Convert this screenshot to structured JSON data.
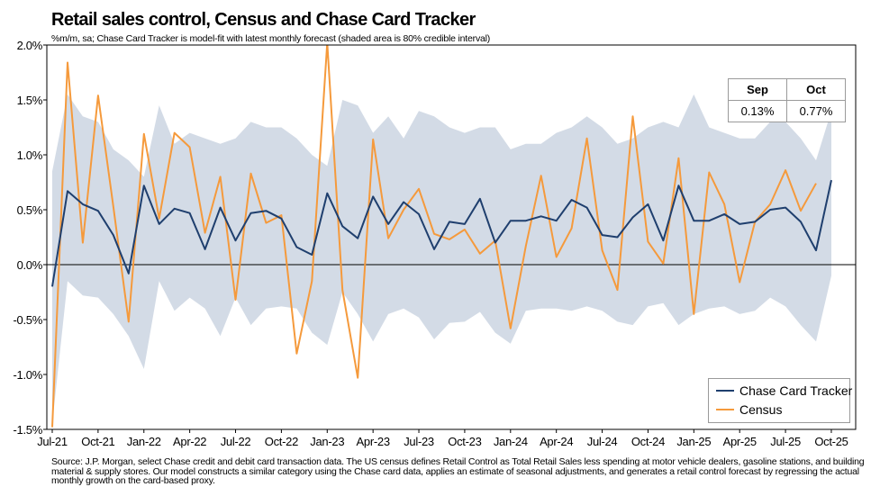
{
  "title": "Retail sales control, Census and Chase Card Tracker",
  "subtitle": "%m/m, sa; Chase Card Tracker is model-fit with latest monthly forecast (shaded area is 80% credible interval)",
  "source": "Source: J.P. Morgan, select Chase credit and debit card transaction data. The US census defines Retail Control as Total Retail Sales less spending at motor vehicle dealers, gasoline stations, and building material & supply stores. Our model constructs a similar category using the Chase card data, applies an estimate of seasonal adjustments, and generates a retail control forecast by regressing the actual monthly growth on the card-based proxy.",
  "table": {
    "headers": [
      "Sep",
      "Oct"
    ],
    "values": [
      "0.13%",
      "0.77%"
    ]
  },
  "colors": {
    "chase": "#1f3f6e",
    "census": "#f59a3c",
    "band": "#d3dbe6",
    "zero_line": "#000000"
  },
  "chart_data": {
    "type": "line",
    "title": "Retail sales control, Census and Chase Card Tracker",
    "ylim": [
      -1.5,
      2.0
    ],
    "y_ticks": [
      "2.0%",
      "1.5%",
      "1.0%",
      "0.5%",
      "0.0%",
      "-0.5%",
      "-1.0%",
      "-1.5%"
    ],
    "x_tick_labels": [
      "Jul-21",
      "Oct-21",
      "Jan-22",
      "Apr-22",
      "Jul-22",
      "Oct-22",
      "Jan-23",
      "Apr-23",
      "Jul-23",
      "Oct-23",
      "Jan-24",
      "Apr-24",
      "Jul-24",
      "Oct-24",
      "Jan-25",
      "Apr-25",
      "Jul-25",
      "Oct-25"
    ],
    "x_tick_every": 3,
    "x": [
      "Jul-21",
      "Aug-21",
      "Sep-21",
      "Oct-21",
      "Nov-21",
      "Dec-21",
      "Jan-22",
      "Feb-22",
      "Mar-22",
      "Apr-22",
      "May-22",
      "Jun-22",
      "Jul-22",
      "Aug-22",
      "Sep-22",
      "Oct-22",
      "Nov-22",
      "Dec-22",
      "Jan-23",
      "Feb-23",
      "Mar-23",
      "Apr-23",
      "May-23",
      "Jun-23",
      "Jul-23",
      "Aug-23",
      "Sep-23",
      "Oct-23",
      "Nov-23",
      "Dec-23",
      "Jan-24",
      "Feb-24",
      "Mar-24",
      "Apr-24",
      "May-24",
      "Jun-24",
      "Jul-24",
      "Aug-24",
      "Sep-24",
      "Oct-24",
      "Nov-24",
      "Dec-24",
      "Jan-25",
      "Feb-25",
      "Mar-25",
      "Apr-25",
      "May-25",
      "Jun-25",
      "Jul-25",
      "Aug-25",
      "Sep-25",
      "Oct-25"
    ],
    "grid": false,
    "legend_position": "bottom-right",
    "band": {
      "upper": [
        0.85,
        1.55,
        1.35,
        1.3,
        1.05,
        0.95,
        0.8,
        1.45,
        1.1,
        1.2,
        1.15,
        1.1,
        1.15,
        1.3,
        1.25,
        1.25,
        1.15,
        1.0,
        0.9,
        1.5,
        1.45,
        1.2,
        1.35,
        1.15,
        1.4,
        1.35,
        1.25,
        1.2,
        1.25,
        1.25,
        1.05,
        1.1,
        1.1,
        1.2,
        1.25,
        1.35,
        1.25,
        1.1,
        1.15,
        1.25,
        1.3,
        1.25,
        1.55,
        1.25,
        1.2,
        1.15,
        1.15,
        1.3,
        1.3,
        1.15,
        0.95,
        1.4
      ],
      "lower": [
        -1.45,
        -0.15,
        -0.28,
        -0.3,
        -0.45,
        -0.65,
        -0.95,
        -0.15,
        -0.42,
        -0.3,
        -0.4,
        -0.65,
        -0.3,
        -0.55,
        -0.4,
        -0.38,
        -0.4,
        -0.62,
        -0.73,
        -0.25,
        -0.45,
        -0.7,
        -0.45,
        -0.4,
        -0.48,
        -0.68,
        -0.53,
        -0.52,
        -0.43,
        -0.62,
        -0.72,
        -0.42,
        -0.4,
        -0.4,
        -0.42,
        -0.38,
        -0.42,
        -0.52,
        -0.55,
        -0.38,
        -0.35,
        -0.55,
        -0.45,
        -0.4,
        -0.38,
        -0.45,
        -0.42,
        -0.3,
        -0.38,
        -0.55,
        -0.7,
        -0.1
      ]
    },
    "series": [
      {
        "name": "Chase Card Tracker",
        "values": [
          -0.2,
          0.67,
          0.55,
          0.49,
          0.27,
          -0.08,
          0.72,
          0.37,
          0.51,
          0.47,
          0.14,
          0.52,
          0.22,
          0.47,
          0.49,
          0.42,
          0.16,
          0.09,
          0.65,
          0.35,
          0.24,
          0.62,
          0.37,
          0.57,
          0.46,
          0.14,
          0.39,
          0.37,
          0.6,
          0.2,
          0.4,
          0.4,
          0.44,
          0.4,
          0.59,
          0.52,
          0.27,
          0.25,
          0.43,
          0.55,
          0.22,
          0.72,
          0.4,
          0.4,
          0.46,
          0.37,
          0.39,
          0.5,
          0.52,
          0.39,
          0.13,
          0.77
        ]
      },
      {
        "name": "Census",
        "values": [
          -1.48,
          1.84,
          0.2,
          1.54,
          0.53,
          -0.52,
          1.19,
          0.42,
          1.2,
          1.07,
          0.29,
          0.8,
          -0.32,
          0.83,
          0.38,
          0.45,
          -0.81,
          -0.15,
          2.02,
          -0.23,
          -1.03,
          1.14,
          0.24,
          0.5,
          0.69,
          0.28,
          0.23,
          0.32,
          0.1,
          0.22,
          -0.58,
          0.17,
          0.81,
          0.07,
          0.33,
          1.15,
          0.13,
          -0.23,
          1.35,
          0.21,
          0.01,
          0.97,
          -0.45,
          0.84,
          0.55,
          -0.16,
          0.39,
          0.55,
          0.86,
          0.49,
          0.74,
          null
        ]
      }
    ]
  }
}
